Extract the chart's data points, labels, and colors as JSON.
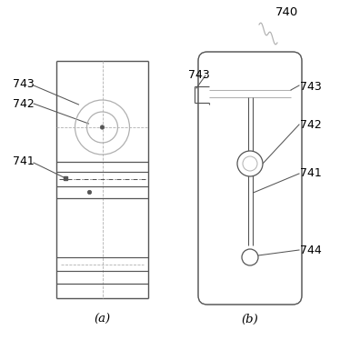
{
  "bg_color": "#ffffff",
  "lc": "#b0b0b0",
  "dc": "#555555",
  "tc": "#000000",
  "figsize": [
    3.96,
    3.85
  ],
  "dpi": 100,
  "label_a": "(a)",
  "label_b": "(b)",
  "label_740": "740"
}
